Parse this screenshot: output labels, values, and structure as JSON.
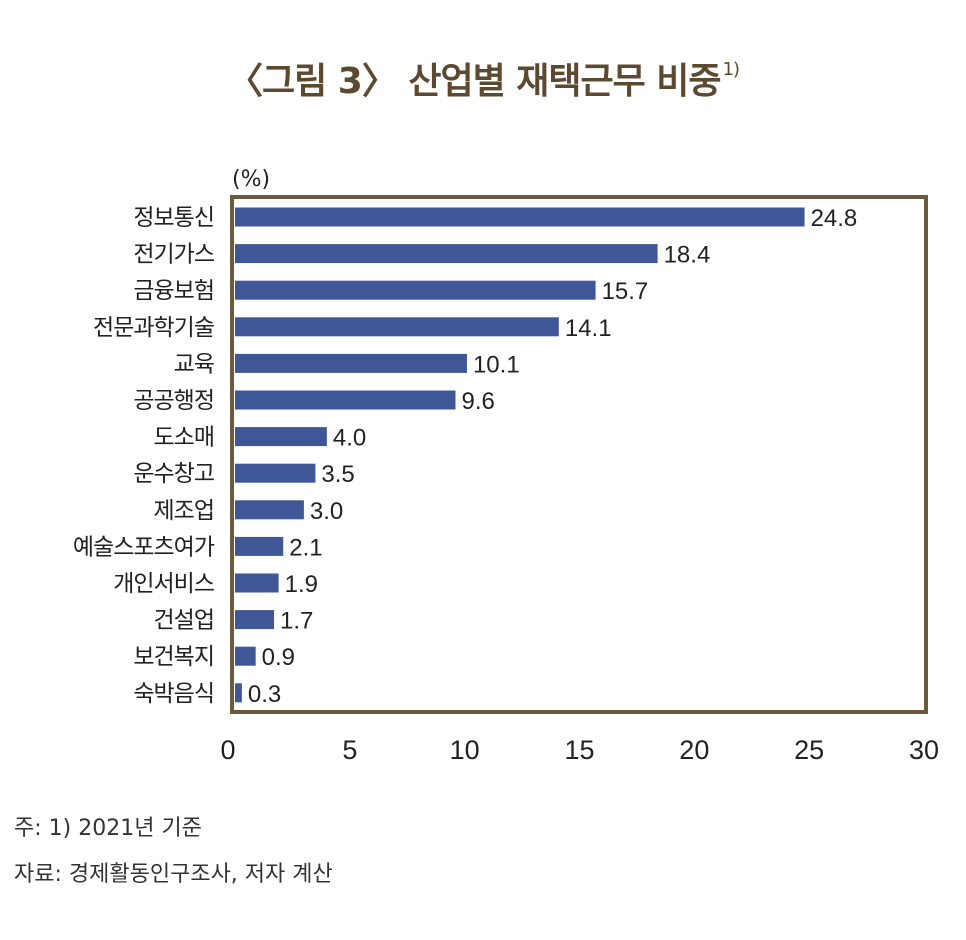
{
  "title": {
    "text": "〈그림 3〉 산업별 재택근무 비중",
    "footnote_mark": "1)"
  },
  "colors": {
    "bar": "#3f5797",
    "frame": "#6b5a3c",
    "title": "#5c4a30"
  },
  "chart_data": {
    "type": "bar",
    "orientation": "horizontal",
    "unit_label": "(%)",
    "categories": [
      "정보통신",
      "전기가스",
      "금융보험",
      "전문과학기술",
      "교육",
      "공공행정",
      "도소매",
      "운수창고",
      "제조업",
      "예술스포츠여가",
      "개인서비스",
      "건설업",
      "보건복지",
      "숙박음식"
    ],
    "values": [
      24.8,
      18.4,
      15.7,
      14.1,
      10.1,
      9.6,
      4.0,
      3.5,
      3.0,
      2.1,
      1.9,
      1.7,
      0.9,
      0.3
    ],
    "value_labels": [
      "24.8",
      "18.4",
      "15.7",
      "14.1",
      "10.1",
      "9.6",
      "4.0",
      "3.5",
      "3.0",
      "2.1",
      "1.9",
      "1.7",
      "0.9",
      "0.3"
    ],
    "xlim": [
      0,
      30
    ],
    "xticks": [
      0,
      5,
      10,
      15,
      20,
      25,
      30
    ],
    "grid": false
  },
  "notes": {
    "note1": "주: 1) 2021년 기준",
    "source": "자료: 경제활동인구조사, 저자 계산"
  }
}
